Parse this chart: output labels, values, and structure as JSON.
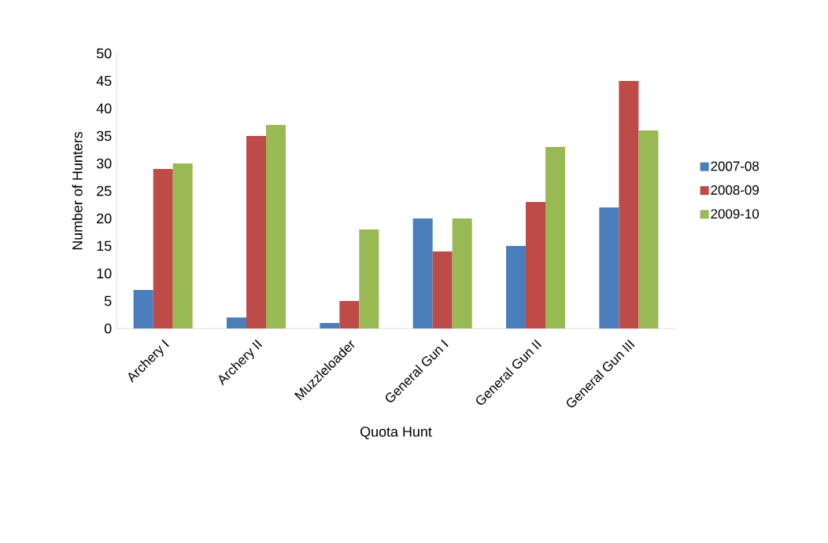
{
  "chart_data": {
    "type": "bar",
    "xlabel": "Quota Hunt",
    "ylabel": "Number of Hunters",
    "categories": [
      "Archery I",
      "Archery II",
      "Muzzleloader",
      "General Gun I",
      "General Gun II",
      "General Gun III"
    ],
    "series": [
      {
        "name": "2007-08",
        "color": "#4a7ebb",
        "values": [
          7,
          2,
          1,
          20,
          15,
          22
        ]
      },
      {
        "name": "2008-09",
        "color": "#be4b48",
        "values": [
          29,
          35,
          5,
          14,
          23,
          45
        ]
      },
      {
        "name": "2009-10",
        "color": "#98b954",
        "values": [
          30,
          37,
          18,
          20,
          33,
          36
        ]
      }
    ],
    "ylim": [
      0,
      50
    ],
    "yticks": [
      0,
      5,
      10,
      15,
      20,
      25,
      30,
      35,
      40,
      45,
      50
    ],
    "grid": false,
    "legend": "right"
  }
}
